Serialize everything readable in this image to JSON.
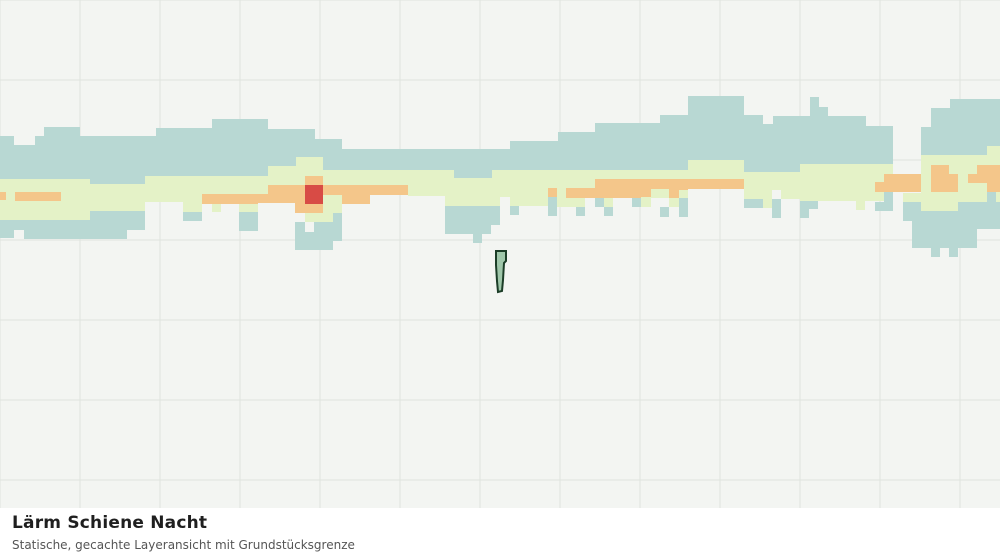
{
  "map": {
    "title": "Lärm Schiene Nacht",
    "subtitle": "Statische, gecachte Layeransicht mit Grundstücksgrenze",
    "background_color": "#f3f5f2",
    "grid_color": "#dfe3de",
    "noise_colors": {
      "lowest": "#b8d8d3",
      "low": "#e4f2c7",
      "medium": "#f4c68a",
      "high": "#d84b45"
    },
    "parcel": {
      "fill": "#9fc7aa",
      "stroke": "#1b3d27"
    }
  }
}
